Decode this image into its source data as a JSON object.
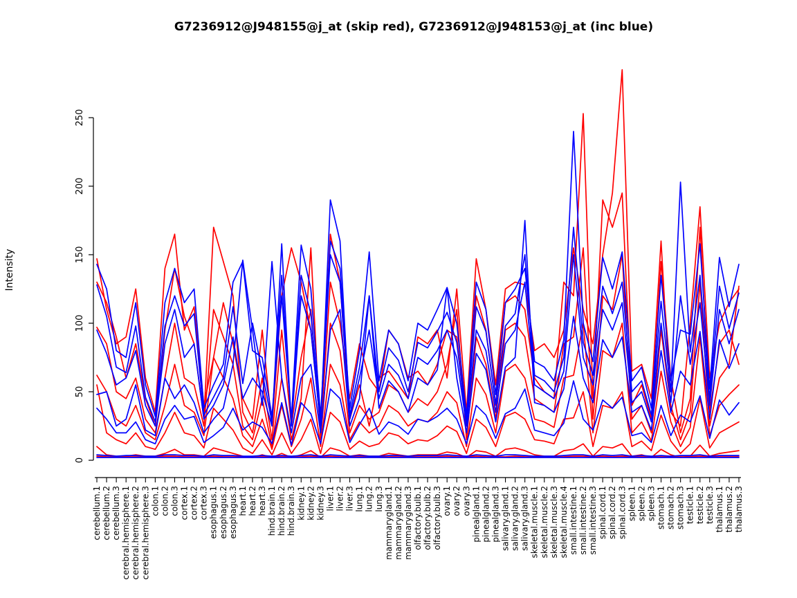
{
  "chart_data": {
    "type": "line",
    "title": "G7236912@J948155@j_at (skip red), G7236912@J948153@j_at (inc blue)",
    "xlabel": "",
    "ylabel": "Intensity",
    "ylim": [
      0,
      290
    ],
    "yticks": [
      0,
      50,
      100,
      150,
      200,
      250
    ],
    "grid": false,
    "legend": "none (encoded in title: red = skip, blue = inc)",
    "x_tick_rotation": 90,
    "groups": [
      {
        "id": "G7236912@J948155@j_at",
        "label": "skip",
        "color": "#ff0000"
      },
      {
        "id": "G7236912@J948153@j_at",
        "label": "inc",
        "color": "#0000ff"
      }
    ],
    "categories": [
      "cerebellum.1",
      "cerebellum.2",
      "cerebellum.3",
      "cerebral.hemisphere.1",
      "cerebral.hemisphere.2",
      "cerebral.hemisphere.3",
      "colon.1",
      "colon.2",
      "colon.3",
      "cortex.1",
      "cortex.2",
      "cortex.3",
      "esophagus.1",
      "esophagus.2",
      "esophagus.3",
      "heart.1",
      "heart.2",
      "heart.3",
      "hind.brain.1",
      "hind.brain.2",
      "hind.brain.3",
      "kidney.1",
      "kidney.2",
      "kidney.3",
      "liver.1",
      "liver.2",
      "liver.3",
      "lung.1",
      "lung.2",
      "lung.3",
      "mammarygland.1",
      "mammarygland.2",
      "mammarygland.3",
      "olfactory.bulb.1",
      "olfactory.bulb.2",
      "olfactory.bulb.3",
      "ovary.1",
      "ovary.2",
      "ovary.3",
      "pinealgland.1",
      "pinealgland.2",
      "pinealgland.3",
      "salivary.gland.1",
      "salivary.gland.2",
      "salivary.gland.3",
      "skeletal.muscle.1",
      "skeletal.muscle.2",
      "skeletal.muscle.3",
      "skeletal.muscle.4",
      "small.intestine.1",
      "small.intestine.2",
      "small.intestine.3",
      "spinal.cord.1",
      "spinal.cord.2",
      "spinal.cord.3",
      "spleen.1",
      "spleen.2",
      "spleen.3",
      "stomach.1",
      "stomach.2",
      "stomach.3",
      "testicle.1",
      "testicle.2",
      "testicle.3",
      "thalamus.1",
      "thalamus.2",
      "thalamus.3"
    ],
    "series": [
      {
        "name": "skip-red-1",
        "group": "G7236912@J948155@j_at",
        "color": "#ff0000",
        "values": [
          147,
          110,
          85,
          90,
          125,
          60,
          35,
          140,
          165,
          95,
          112,
          40,
          75,
          115,
          85,
          45,
          30,
          95,
          25,
          120,
          155,
          130,
          95,
          25,
          165,
          130,
          30,
          55,
          25,
          60,
          65,
          55,
          45,
          90,
          85,
          95,
          60,
          125,
          35,
          147,
          110,
          55,
          125,
          130,
          128,
          80,
          85,
          75,
          95,
          155,
          110,
          85,
          150,
          195,
          285,
          65,
          70,
          45,
          160,
          35,
          25,
          100,
          185,
          60,
          100,
          115,
          125
        ]
      },
      {
        "name": "skip-red-2",
        "group": "G7236912@J948155@j_at",
        "color": "#ff0000",
        "values": [
          130,
          115,
          90,
          60,
          85,
          45,
          25,
          95,
          140,
          105,
          85,
          30,
          170,
          145,
          120,
          35,
          20,
          60,
          15,
          95,
          25,
          75,
          110,
          20,
          130,
          100,
          45,
          85,
          60,
          50,
          95,
          85,
          60,
          65,
          55,
          70,
          95,
          90,
          25,
          120,
          95,
          40,
          115,
          120,
          110,
          60,
          50,
          45,
          130,
          120,
          253,
          45,
          190,
          170,
          195,
          40,
          55,
          30,
          145,
          60,
          20,
          45,
          170,
          35,
          85,
          95,
          70
        ]
      },
      {
        "name": "skip-red-3",
        "group": "G7236912@J948155@j_at",
        "color": "#ff0000",
        "values": [
          97,
          85,
          50,
          45,
          60,
          30,
          20,
          60,
          100,
          60,
          55,
          25,
          110,
          90,
          70,
          25,
          15,
          45,
          10,
          60,
          15,
          45,
          155,
          15,
          100,
          80,
          20,
          40,
          30,
          35,
          55,
          50,
          35,
          45,
          40,
          50,
          70,
          110,
          15,
          90,
          70,
          30,
          95,
          100,
          90,
          45,
          40,
          35,
          85,
          90,
          155,
          30,
          120,
          110,
          150,
          30,
          40,
          20,
          95,
          40,
          15,
          35,
          130,
          25,
          60,
          70,
          127
        ]
      },
      {
        "name": "skip-red-4",
        "group": "G7236912@J948155@j_at",
        "color": "#ff0000",
        "values": [
          62,
          50,
          30,
          25,
          40,
          20,
          15,
          40,
          70,
          40,
          35,
          18,
          75,
          60,
          45,
          18,
          10,
          30,
          8,
          40,
          10,
          30,
          60,
          10,
          70,
          55,
          15,
          28,
          20,
          25,
          40,
          35,
          25,
          30,
          28,
          35,
          50,
          42,
          10,
          60,
          48,
          20,
          65,
          70,
          60,
          30,
          28,
          24,
          60,
          62,
          100,
          20,
          80,
          75,
          100,
          20,
          28,
          14,
          65,
          28,
          10,
          24,
          90,
          18,
          40,
          48,
          55
        ]
      },
      {
        "name": "skip-red-5",
        "group": "G7236912@J948155@j_at",
        "color": "#ff0000",
        "values": [
          55,
          20,
          15,
          12,
          20,
          10,
          8,
          20,
          35,
          20,
          18,
          9,
          38,
          30,
          22,
          9,
          5,
          15,
          4,
          20,
          5,
          15,
          30,
          5,
          35,
          28,
          8,
          14,
          10,
          12,
          20,
          18,
          12,
          15,
          14,
          18,
          25,
          21,
          5,
          30,
          24,
          10,
          32,
          35,
          30,
          15,
          14,
          12,
          30,
          31,
          50,
          10,
          40,
          38,
          50,
          10,
          14,
          7,
          33,
          14,
          5,
          12,
          45,
          9,
          20,
          24,
          28
        ]
      },
      {
        "name": "skip-red-6",
        "group": "G7236912@J948155@j_at",
        "color": "#ff0000",
        "values": [
          10,
          4,
          3,
          3,
          4,
          3,
          3,
          5,
          8,
          4,
          4,
          3,
          9,
          7,
          5,
          3,
          2,
          4,
          2,
          5,
          2,
          4,
          7,
          2,
          9,
          7,
          3,
          4,
          3,
          3,
          5,
          4,
          3,
          4,
          4,
          4,
          6,
          5,
          2,
          7,
          6,
          3,
          8,
          9,
          7,
          4,
          3,
          3,
          7,
          8,
          12,
          3,
          10,
          9,
          12,
          3,
          4,
          2,
          8,
          4,
          2,
          3,
          11,
          3,
          5,
          6,
          7
        ]
      },
      {
        "name": "skip-red-7",
        "group": "G7236912@J948155@j_at",
        "color": "#ff0000",
        "values": [
          3,
          2.5,
          2.5,
          2.5,
          2.5,
          2.5,
          2.5,
          3,
          3,
          2.5,
          2.5,
          2.5,
          3,
          2.5,
          2.5,
          2.5,
          2.5,
          2.5,
          2.5,
          2.5,
          2.5,
          2.5,
          3,
          2.5,
          3,
          2.5,
          2.5,
          2.5,
          2.5,
          2.5,
          2.5,
          2.5,
          2.5,
          2.5,
          2.5,
          2.5,
          3,
          2.5,
          2.5,
          3,
          2.5,
          2.5,
          2.5,
          3,
          2.5,
          2.5,
          2.5,
          2.5,
          2.5,
          3,
          3,
          2.5,
          3,
          2.5,
          3,
          2.5,
          2.5,
          2.5,
          2.5,
          2.5,
          2.5,
          2.5,
          3,
          2.5,
          2.5,
          2.5,
          2.5
        ]
      },
      {
        "name": "inc-blue-1",
        "group": "G7236912@J948153@j_at",
        "color": "#0000ff",
        "values": [
          95,
          78,
          55,
          60,
          80,
          40,
          25,
          85,
          110,
          75,
          85,
          30,
          40,
          55,
          90,
          45,
          60,
          50,
          25,
          158,
          25,
          120,
          95,
          25,
          190,
          160,
          30,
          60,
          95,
          45,
          70,
          62,
          45,
          75,
          70,
          80,
          95,
          75,
          25,
          95,
          80,
          35,
          85,
          95,
          130,
          55,
          50,
          45,
          65,
          150,
          75,
          55,
          110,
          95,
          115,
          42,
          50,
          28,
          100,
          42,
          120,
          70,
          115,
          40,
          110,
          85,
          110
        ]
      },
      {
        "name": "inc-blue-2",
        "group": "G7236912@J948153@j_at",
        "color": "#0000ff",
        "values": [
          143,
          125,
          80,
          75,
          115,
          55,
          32,
          115,
          140,
          115,
          125,
          38,
          55,
          70,
          130,
          145,
          80,
          75,
          32,
          120,
          30,
          157,
          125,
          32,
          160,
          140,
          38,
          80,
          152,
          58,
          95,
          85,
          58,
          100,
          95,
          110,
          126,
          100,
          32,
          130,
          110,
          48,
          115,
          125,
          140,
          72,
          68,
          58,
          88,
          240,
          100,
          72,
          148,
          125,
          152,
          58,
          68,
          38,
          135,
          58,
          95,
          92,
          158,
          52,
          148,
          112,
          143
        ]
      },
      {
        "name": "inc-blue-3",
        "group": "G7236912@J948153@j_at",
        "color": "#0000ff",
        "values": [
          128,
          105,
          68,
          64,
          98,
          46,
          28,
          98,
          120,
          98,
          107,
          33,
          46,
          60,
          112,
          56,
          100,
          64,
          28,
          135,
          26,
          135,
          107,
          28,
          150,
          130,
          33,
          68,
          120,
          50,
          82,
          73,
          50,
          86,
          82,
          94,
          108,
          86,
          28,
          112,
          94,
          41,
          98,
          107,
          150,
          62,
          58,
          50,
          75,
          170,
          86,
          62,
          127,
          107,
          130,
          50,
          58,
          33,
          116,
          50,
          203,
          79,
          135,
          45,
          127,
          96,
          122
        ]
      },
      {
        "name": "inc-blue-4",
        "group": "G7236912@J948153@j_at",
        "color": "#0000ff",
        "values": [
          48,
          50,
          25,
          30,
          55,
          22,
          18,
          60,
          45,
          55,
          42,
          20,
          30,
          38,
          70,
          146,
          95,
          40,
          145,
          60,
          20,
          60,
          70,
          20,
          95,
          110,
          25,
          45,
          120,
          38,
          58,
          50,
          35,
          60,
          55,
          66,
          126,
          60,
          20,
          78,
          66,
          28,
          68,
          75,
          175,
          42,
          40,
          35,
          52,
          105,
          60,
          42,
          88,
          75,
          90,
          35,
          40,
          22,
          80,
          35,
          65,
          55,
          94,
          30,
          88,
          67,
          85
        ]
      },
      {
        "name": "inc-blue-5",
        "group": "G7236912@J948153@j_at",
        "color": "#0000ff",
        "values": [
          38,
          30,
          20,
          20,
          28,
          15,
          12,
          30,
          40,
          30,
          32,
          13,
          18,
          24,
          38,
          22,
          28,
          24,
          12,
          42,
          11,
          42,
          34,
          12,
          52,
          45,
          13,
          26,
          38,
          19,
          28,
          25,
          19,
          30,
          28,
          32,
          38,
          30,
          12,
          40,
          33,
          16,
          34,
          38,
          52,
          22,
          20,
          18,
          27,
          58,
          30,
          22,
          44,
          38,
          46,
          18,
          20,
          13,
          40,
          18,
          33,
          28,
          47,
          16,
          44,
          33,
          42
        ]
      },
      {
        "name": "inc-blue-6",
        "group": "G7236912@J948153@j_at",
        "color": "#0000ff",
        "values": [
          4,
          3.5,
          3,
          3.5,
          3.5,
          3,
          3,
          4,
          4,
          3.5,
          3.5,
          3,
          4,
          3.5,
          3.5,
          3,
          3,
          3.5,
          3,
          3.5,
          3,
          3.5,
          4,
          3,
          4,
          3.5,
          3,
          3.5,
          3,
          3,
          3.5,
          3.5,
          3,
          3.5,
          3.5,
          3.5,
          4,
          3.5,
          3,
          4,
          3.5,
          3,
          4,
          4,
          3.5,
          3,
          3,
          3,
          3.5,
          4,
          4,
          3,
          4,
          3.5,
          4,
          3,
          3.5,
          3,
          3.5,
          3,
          3.5,
          3.5,
          4,
          3,
          3.5,
          3.5,
          3.5
        ]
      },
      {
        "name": "inc-blue-7",
        "group": "G7236912@J948153@j_at",
        "color": "#0000ff",
        "values": [
          2,
          2,
          2,
          2,
          2,
          2,
          2,
          2,
          2,
          2,
          2,
          2,
          2,
          2,
          2,
          2,
          2,
          2,
          2,
          2,
          2,
          2,
          2,
          2,
          2,
          2,
          2,
          2,
          2,
          2,
          2,
          2,
          2,
          2,
          2,
          2,
          2,
          2,
          2,
          2,
          2,
          2,
          2,
          2,
          2,
          2,
          2,
          2,
          2,
          2,
          2,
          2,
          2,
          2,
          2,
          2,
          2,
          2,
          2,
          2,
          2,
          2,
          2,
          2,
          2,
          2,
          2
        ]
      }
    ]
  },
  "style": {
    "background": "#ffffff",
    "axis_color": "#000000",
    "skip_color": "#ff0000",
    "inc_color": "#0000ff"
  }
}
